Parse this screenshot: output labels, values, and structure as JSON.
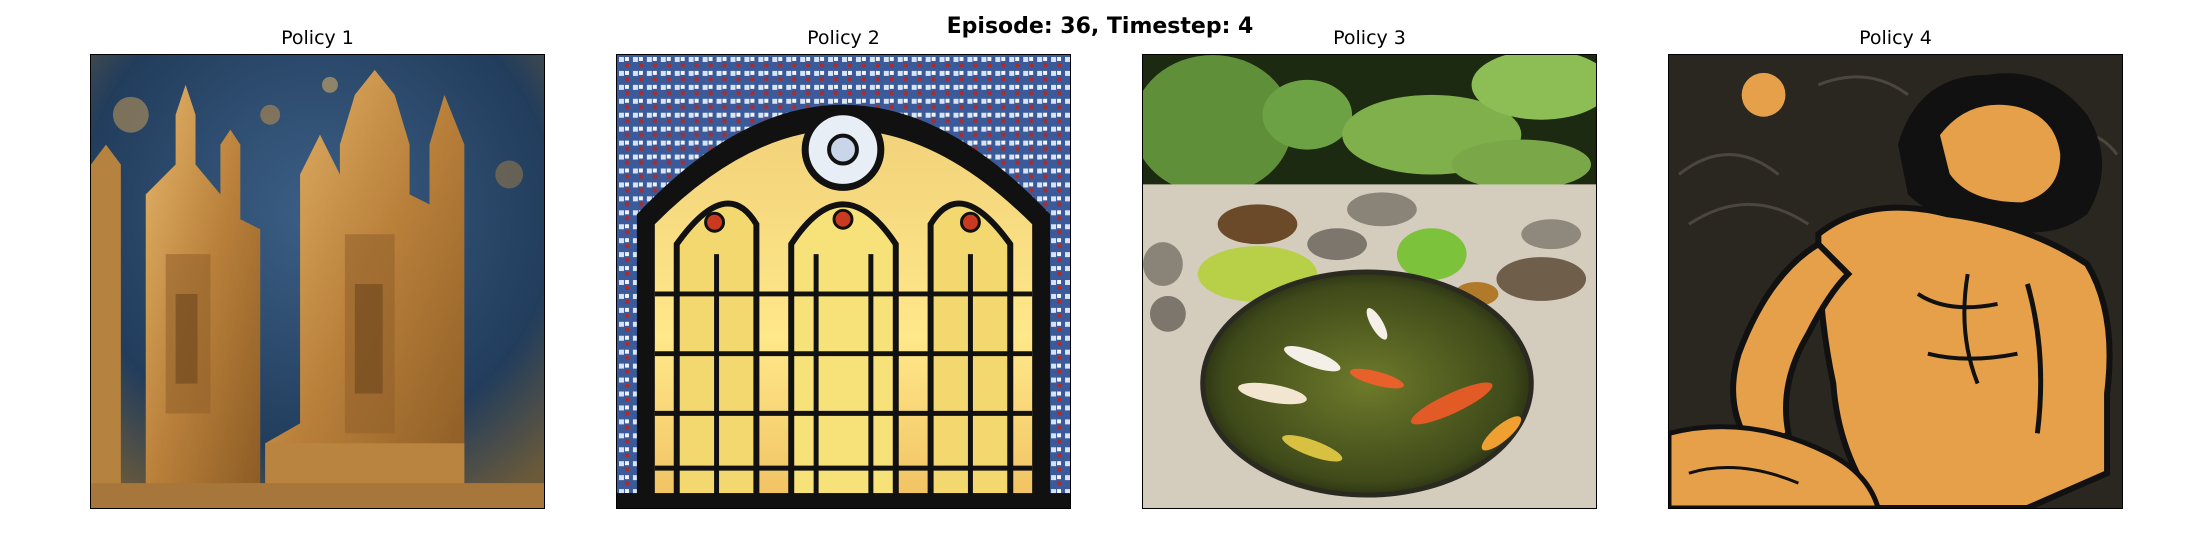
{
  "figure": {
    "suptitle": "Episode: 36, Timestep: 4"
  },
  "panels": [
    {
      "title": "Policy 1",
      "image": "gold-relief-castle-image"
    },
    {
      "title": "Policy 2",
      "image": "stained-glass-window-image"
    },
    {
      "title": "Policy 3",
      "image": "zen-garden-koi-pond-image"
    },
    {
      "title": "Policy 4",
      "image": "woodcut-lion-man-image"
    }
  ],
  "colors": {
    "gold": "#c8954a",
    "blue": "#2b4a6b",
    "orange": "#e8a040",
    "black": "#111111"
  }
}
